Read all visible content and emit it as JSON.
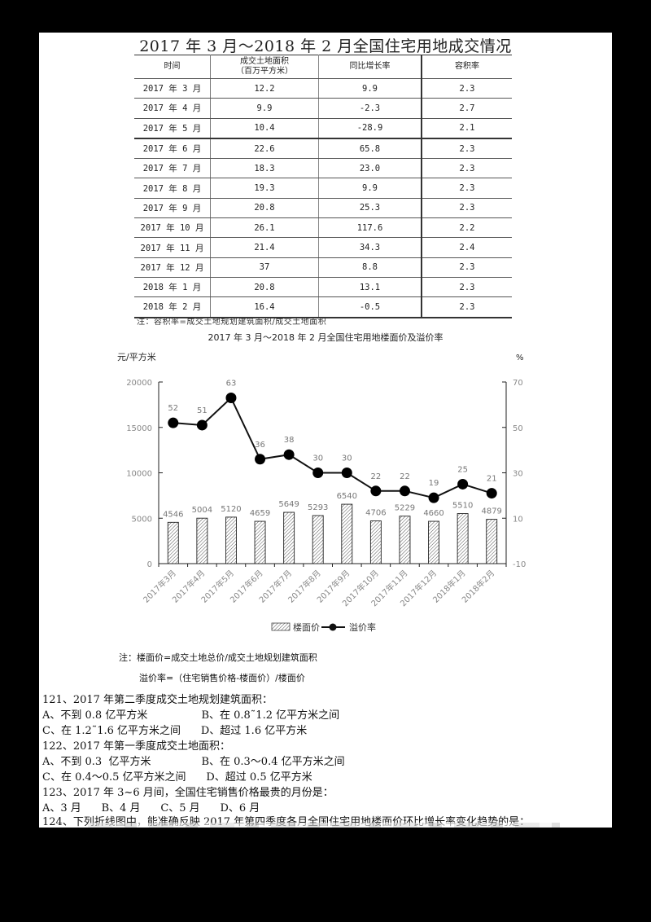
{
  "table": {
    "title": "2017 年 3 月～2018 年 2 月全国住宅用地成交情况",
    "headers": [
      "时间",
      "成交土地面积\n（百万平方米）",
      "同比增长率",
      "容积率"
    ],
    "header_area_line1": "成交土地面积",
    "header_area_line2": "（百万平方米）",
    "rows": [
      {
        "time": "2017 年 3 月",
        "area": "12.2",
        "growth": "9.9",
        "far": "2.3"
      },
      {
        "time": "2017 年 4 月",
        "area": "9.9",
        "growth": "-2.3",
        "far": "2.7"
      },
      {
        "time": "2017 年 5 月",
        "area": "10.4",
        "growth": "-28.9",
        "far": "2.1"
      },
      {
        "time": "2017 年 6 月",
        "area": "22.6",
        "growth": "65.8",
        "far": "2.3"
      },
      {
        "time": "2017 年 7 月",
        "area": "18.3",
        "growth": "23.0",
        "far": "2.3"
      },
      {
        "time": "2017 年 8 月",
        "area": "19.3",
        "growth": "9.9",
        "far": "2.3"
      },
      {
        "time": "2017 年 9 月",
        "area": "20.8",
        "growth": "25.3",
        "far": "2.3"
      },
      {
        "time": "2017 年 10 月",
        "area": "26.1",
        "growth": "117.6",
        "far": "2.2"
      },
      {
        "time": "2017 年 11 月",
        "area": "21.4",
        "growth": "34.3",
        "far": "2.4"
      },
      {
        "time": "2017 年 12 月",
        "area": "37",
        "growth": "8.8",
        "far": "2.3"
      },
      {
        "time": "2018 年 1 月",
        "area": "20.8",
        "growth": "13.1",
        "far": "2.3"
      },
      {
        "time": "2018 年 2 月",
        "area": "16.4",
        "growth": "-0.5",
        "far": "2.3"
      }
    ],
    "note": "注：容积率=成交土地规划建筑面积/成交土地面积"
  },
  "chart_data": {
    "type": "bar",
    "title": "2017 年 3 月～2018 年 2 月全国住宅用地楼面价及溢价率",
    "categories": [
      "2017年3月",
      "2017年4月",
      "2017年5月",
      "2017年6月",
      "2017年7月",
      "2017年8月",
      "2017年9月",
      "2017年10月",
      "2017年11月",
      "2017年12月",
      "2018年1月",
      "2018年2月"
    ],
    "series": [
      {
        "name": "楼面价",
        "type": "bar",
        "axis": "left",
        "values": [
          4546,
          5004,
          5120,
          4659,
          5649,
          5293,
          6540,
          4706,
          5229,
          4660,
          5510,
          4879
        ]
      },
      {
        "name": "溢价率",
        "type": "line",
        "axis": "right",
        "values": [
          52,
          51,
          63,
          36,
          38,
          30,
          30,
          22,
          22,
          19,
          25,
          21
        ]
      }
    ],
    "ylabel": "元/平方米",
    "y2label": "%",
    "ylim": [
      0,
      20000
    ],
    "y2lim": [
      -10,
      70
    ],
    "yticks": [
      "0",
      "5000",
      "10000",
      "15000",
      "20000"
    ],
    "y2ticks": [
      "-10",
      "10",
      "30",
      "50",
      "70"
    ],
    "legend": [
      "楼面价",
      "溢价率"
    ],
    "legend_position": "bottom",
    "grid": false
  },
  "chart_notes": {
    "line1": "注：楼面价=成交土地总价/成交土地规划建筑面积",
    "line2": "溢价率=（住宅销售价格-楼面价）/楼面价"
  },
  "questions": [
    {
      "stem": "121、2017 年第二季度成交土地规划建筑面积：",
      "options_line1": "A、不到 0.8 亿平方米                B、在 0.8˜1.2 亿平方米之间",
      "options_line2": "C、在 1.2˜1.6 亿平方米之间      D、超过 1.6 亿平方米"
    },
    {
      "stem": "122、2017 年第一季度成交土地面积：",
      "options_line1": "A、不到 0.3  亿平方米               B、在 0.3～0.4 亿平方米之间",
      "options_line2": "C、在 0.4～0.5 亿平方米之间      D、超过 0.5 亿平方米"
    },
    {
      "stem": "123、2017 年 3~6 月间，全国住宅销售价格最贵的月份是：",
      "options_line1": "A、3 月      B、4 月      C、5 月      D、6 月"
    },
    {
      "stem": "124、下列折线图中，能准确反映 2017 年第四季度各月全国住宅用地楼面价环比增长率变化趋势的是："
    }
  ]
}
